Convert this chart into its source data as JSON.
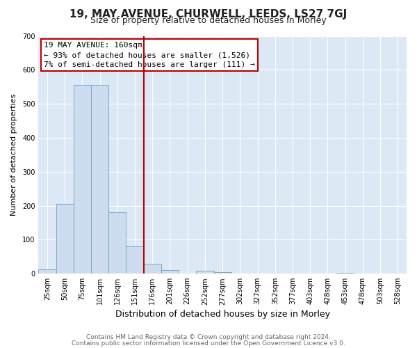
{
  "title1": "19, MAY AVENUE, CHURWELL, LEEDS, LS27 7GJ",
  "title2": "Size of property relative to detached houses in Morley",
  "xlabel": "Distribution of detached houses by size in Morley",
  "ylabel": "Number of detached properties",
  "bar_labels": [
    "25sqm",
    "50sqm",
    "75sqm",
    "101sqm",
    "126sqm",
    "151sqm",
    "176sqm",
    "201sqm",
    "226sqm",
    "252sqm",
    "277sqm",
    "302sqm",
    "327sqm",
    "352sqm",
    "377sqm",
    "403sqm",
    "428sqm",
    "453sqm",
    "478sqm",
    "503sqm",
    "528sqm"
  ],
  "bar_values": [
    13,
    205,
    555,
    555,
    180,
    80,
    30,
    10,
    0,
    8,
    4,
    0,
    0,
    0,
    0,
    0,
    0,
    3,
    0,
    0,
    0
  ],
  "bar_color": "#cddcee",
  "bar_edge_color": "#7aaac8",
  "vline_x": 5.5,
  "vline_color": "#bb0000",
  "annotation_title": "19 MAY AVENUE: 160sqm",
  "annotation_line1": "← 93% of detached houses are smaller (1,526)",
  "annotation_line2": "7% of semi-detached houses are larger (111) →",
  "annotation_box_facecolor": "#ffffff",
  "annotation_box_edgecolor": "#bb0000",
  "ylim": [
    0,
    700
  ],
  "yticks": [
    0,
    100,
    200,
    300,
    400,
    500,
    600,
    700
  ],
  "footer1": "Contains HM Land Registry data © Crown copyright and database right 2024.",
  "footer2": "Contains public sector information licensed under the Open Government Licence v3.0.",
  "fig_facecolor": "#ffffff",
  "plot_facecolor": "#dce8f5",
  "grid_color": "#ffffff",
  "title1_fontsize": 11,
  "title2_fontsize": 9,
  "xlabel_fontsize": 9,
  "ylabel_fontsize": 8,
  "tick_fontsize": 7,
  "annotation_fontsize": 8,
  "footer_fontsize": 6.5
}
